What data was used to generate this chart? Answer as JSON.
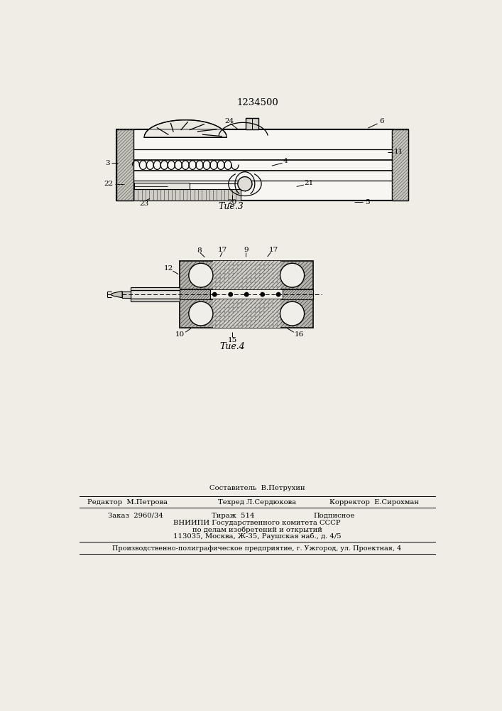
{
  "patent_number": "1234500",
  "bg_color": "#f0ede6",
  "fig3_caption": "Τие.3",
  "fig4_caption": "Τие.4",
  "footer_sestavitel": "Составитель В.Петрухин",
  "footer_redaktor": "Редактор М.Петрова",
  "footer_tehred": "Техред Л.Сердюкова",
  "footer_korrektor": "Корректор Е.Сирохман",
  "footer_zakaz": "Заказ 2960/34",
  "footer_tirazh": "Тираж 514",
  "footer_podpisnoe": "Подписное",
  "footer_vniipи": "ВНИИПИ Государственного комитета СССР",
  "footer_po_delam": "по делам изобретений и открытий",
  "footer_address": "113035, Москва, Ж-35, Раушская наб., д. 4/5",
  "footer_bottom": "Производственно-полиграфическое предприятие, г. Ужгород, ул. Проектная, 4"
}
